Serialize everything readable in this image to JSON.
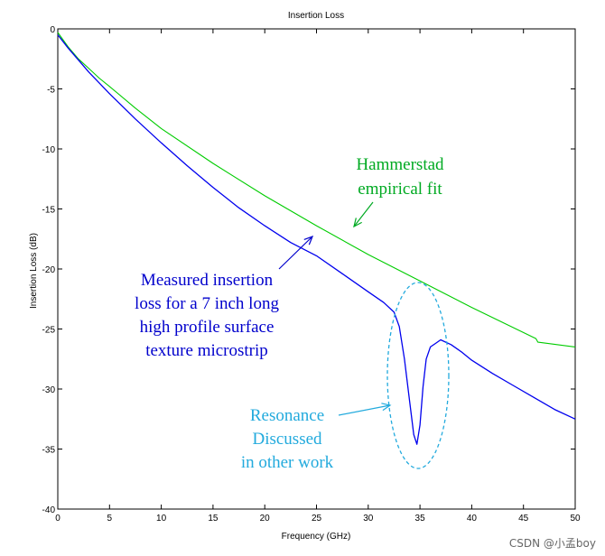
{
  "chart_data": {
    "type": "line",
    "title": "Insertion Loss",
    "xlabel": "Frequency (GHz)",
    "ylabel": "Insertion Loss (dB)",
    "xlim": [
      0,
      50
    ],
    "ylim": [
      -40,
      0
    ],
    "xticks": [
      0,
      5,
      10,
      15,
      20,
      25,
      30,
      35,
      40,
      45,
      50
    ],
    "yticks": [
      0,
      -5,
      -10,
      -15,
      -20,
      -25,
      -30,
      -35,
      -40
    ],
    "grid": false,
    "series": [
      {
        "name": "Hammerstad empirical fit",
        "color": "#00cc00",
        "x": [
          0,
          1,
          2,
          3,
          4,
          5,
          7.5,
          10,
          15,
          20,
          25,
          30,
          35,
          40,
          46.2,
          46.4,
          50
        ],
        "y": [
          -0.3,
          -1.5,
          -2.5,
          -3.3,
          -4.1,
          -4.8,
          -6.6,
          -8.3,
          -11.2,
          -13.9,
          -16.4,
          -18.8,
          -21.0,
          -23.2,
          -25.8,
          -26.1,
          -26.5
        ]
      },
      {
        "name": "Measured insertion loss for a 7 inch long high profile surface texture microstrip",
        "color": "#0000ee",
        "x": [
          0,
          1,
          2,
          3,
          4,
          5,
          7.5,
          10,
          12.5,
          15,
          17.5,
          20,
          22.5,
          25,
          27.5,
          30,
          31.5,
          32.5,
          33,
          33.5,
          34,
          34.4,
          34.7,
          35,
          35.3,
          35.6,
          36,
          36.5,
          37,
          38,
          39,
          40,
          42,
          44,
          46,
          48,
          50
        ],
        "y": [
          -0.5,
          -1.6,
          -2.6,
          -3.6,
          -4.5,
          -5.4,
          -7.5,
          -9.5,
          -11.4,
          -13.2,
          -14.9,
          -16.4,
          -17.8,
          -18.9,
          -20.4,
          -21.9,
          -22.8,
          -23.6,
          -24.8,
          -27.5,
          -31.0,
          -33.8,
          -34.6,
          -33.0,
          -29.8,
          -27.5,
          -26.5,
          -26.2,
          -25.9,
          -26.3,
          -26.9,
          -27.6,
          -28.7,
          -29.7,
          -30.7,
          -31.7,
          -32.5
        ]
      }
    ],
    "annotations": [
      {
        "id": "hammerstad",
        "lines": [
          "Hammerstad",
          "empirical fit"
        ],
        "color": "#00aa22"
      },
      {
        "id": "measured",
        "lines": [
          "Measured insertion",
          "loss for a 7 inch long",
          "high profile surface",
          "texture microstrip"
        ],
        "color": "#0000cc"
      },
      {
        "id": "resonance",
        "lines": [
          "Resonance",
          "Discussed",
          "in other work"
        ],
        "color": "#22aadd"
      }
    ]
  },
  "watermark": "CSDN @小孟boy"
}
